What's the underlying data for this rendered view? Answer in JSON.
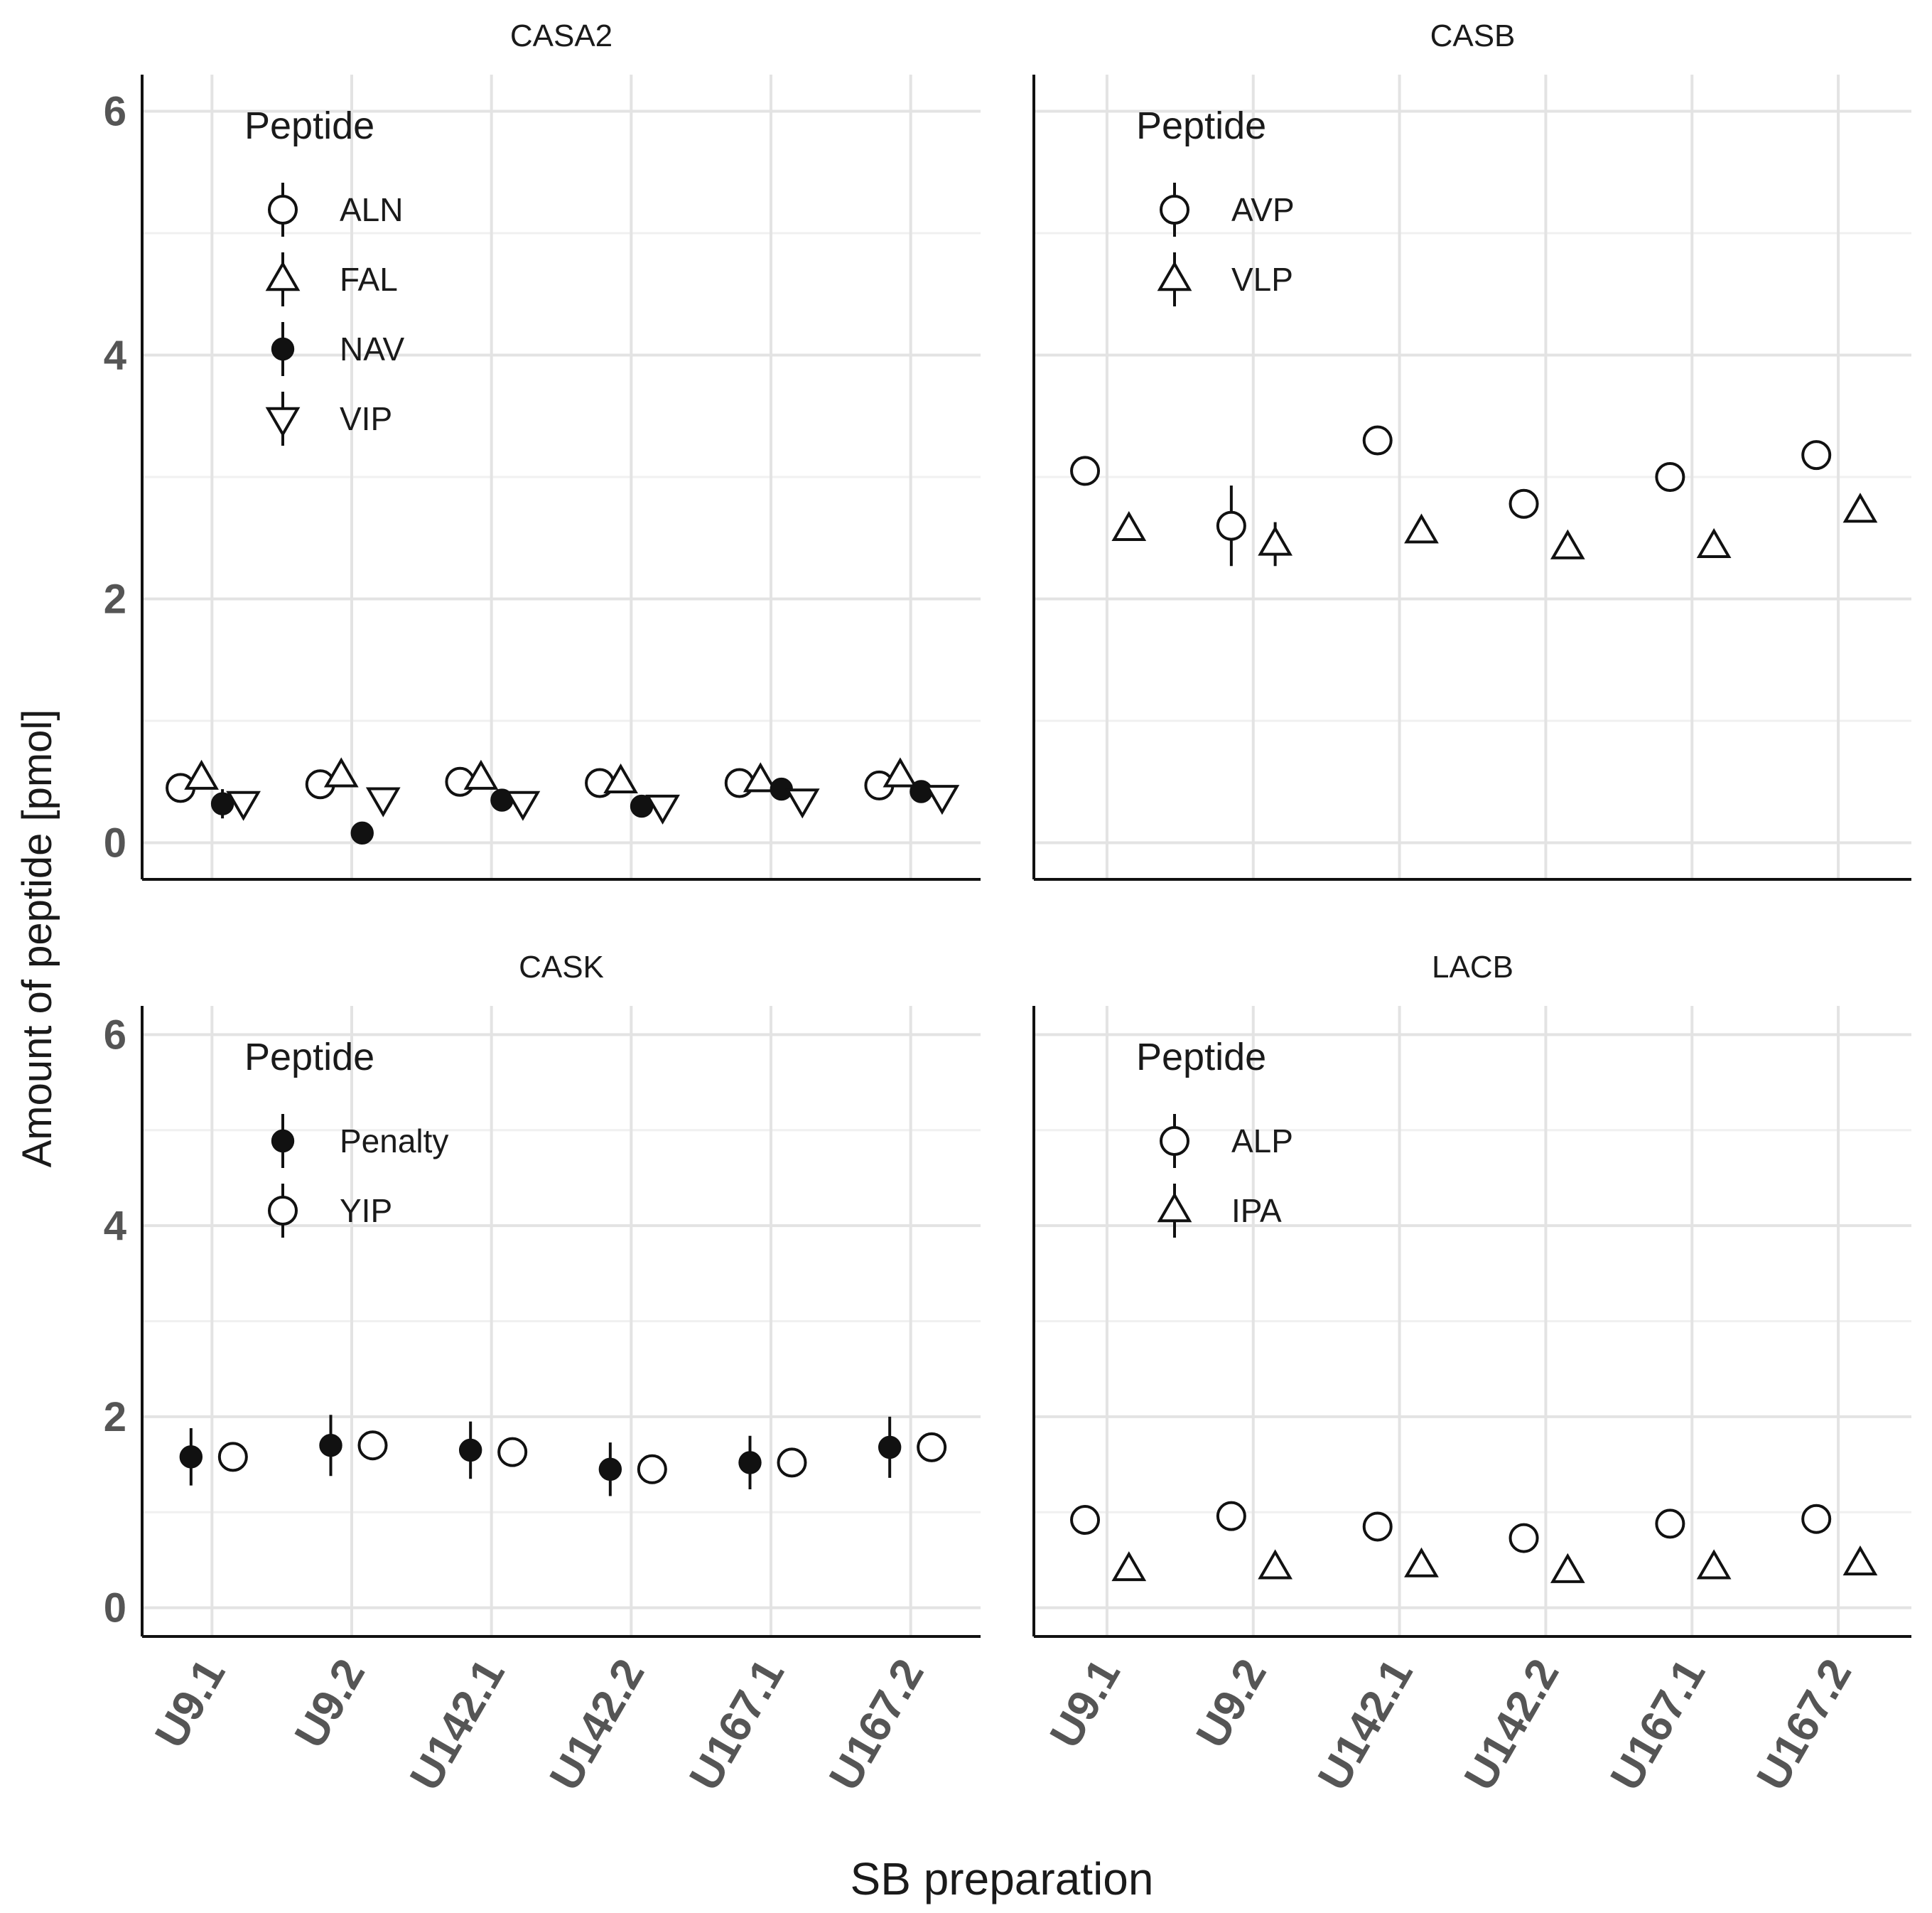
{
  "chart_data": {
    "type": "scatter",
    "title": "",
    "xlabel": "SB preparation",
    "ylabel": "Amount of peptide [pmol]",
    "ylim": [
      -0.3,
      6.3
    ],
    "yticks": [
      0,
      2,
      4,
      6
    ],
    "categories": [
      "U9.1",
      "U9.2",
      "U142.1",
      "U142.2",
      "U167.1",
      "U167.2"
    ],
    "grid": true,
    "error_bars": true,
    "legend_position": "top-left inside each panel",
    "legend_title": "Peptide",
    "panels": [
      {
        "title": "CASA2",
        "series": [
          {
            "name": "ALN",
            "shape": "circle-open",
            "values": [
              0.45,
              0.48,
              0.5,
              0.49,
              0.49,
              0.47
            ],
            "err": [
              0.03,
              0.03,
              0.03,
              0.03,
              0.03,
              0.03
            ]
          },
          {
            "name": "FAL",
            "shape": "triangle-up-open",
            "values": [
              0.53,
              0.55,
              0.53,
              0.5,
              0.51,
              0.55
            ],
            "err": [
              0.03,
              0.03,
              0.03,
              0.03,
              0.03,
              0.03
            ]
          },
          {
            "name": "NAV",
            "shape": "circle-filled",
            "values": [
              0.32,
              0.08,
              0.35,
              0.3,
              0.44,
              0.42
            ],
            "err": [
              0.12,
              0.05,
              0.08,
              0.08,
              0.08,
              0.06
            ]
          },
          {
            "name": "VIP",
            "shape": "triangle-down-open",
            "values": [
              0.33,
              0.36,
              0.33,
              0.3,
              0.35,
              0.38
            ],
            "err": [
              0.03,
              0.03,
              0.03,
              0.03,
              0.03,
              0.03
            ]
          }
        ]
      },
      {
        "title": "CASB",
        "series": [
          {
            "name": "AVP",
            "shape": "circle-open",
            "values": [
              3.05,
              2.6,
              3.3,
              2.78,
              3.0,
              3.18
            ],
            "err": [
              0.08,
              0.33,
              0.1,
              0.08,
              0.08,
              0.08
            ]
          },
          {
            "name": "VLP",
            "shape": "triangle-up-open",
            "values": [
              2.57,
              2.45,
              2.55,
              2.42,
              2.43,
              2.72
            ],
            "err": [
              0.05,
              0.18,
              0.05,
              0.05,
              0.05,
              0.05
            ]
          }
        ]
      },
      {
        "title": "CASK",
        "series": [
          {
            "name": "Penalty",
            "shape": "circle-filled",
            "values": [
              1.58,
              1.7,
              1.65,
              1.45,
              1.52,
              1.68
            ],
            "err": [
              0.3,
              0.32,
              0.3,
              0.28,
              0.28,
              0.32
            ]
          },
          {
            "name": "YIP",
            "shape": "circle-open",
            "values": [
              1.58,
              1.7,
              1.63,
              1.45,
              1.52,
              1.68
            ],
            "err": [
              0.03,
              0.03,
              0.03,
              0.03,
              0.03,
              0.03
            ]
          }
        ]
      },
      {
        "title": "LACB",
        "series": [
          {
            "name": "ALP",
            "shape": "circle-open",
            "values": [
              0.92,
              0.96,
              0.85,
              0.73,
              0.88,
              0.93
            ],
            "err": [
              0.03,
              0.08,
              0.03,
              0.03,
              0.03,
              0.03
            ]
          },
          {
            "name": "IPA",
            "shape": "triangle-up-open",
            "values": [
              0.4,
              0.42,
              0.44,
              0.38,
              0.42,
              0.46
            ],
            "err": [
              0.02,
              0.02,
              0.02,
              0.02,
              0.02,
              0.02
            ]
          }
        ]
      }
    ]
  }
}
